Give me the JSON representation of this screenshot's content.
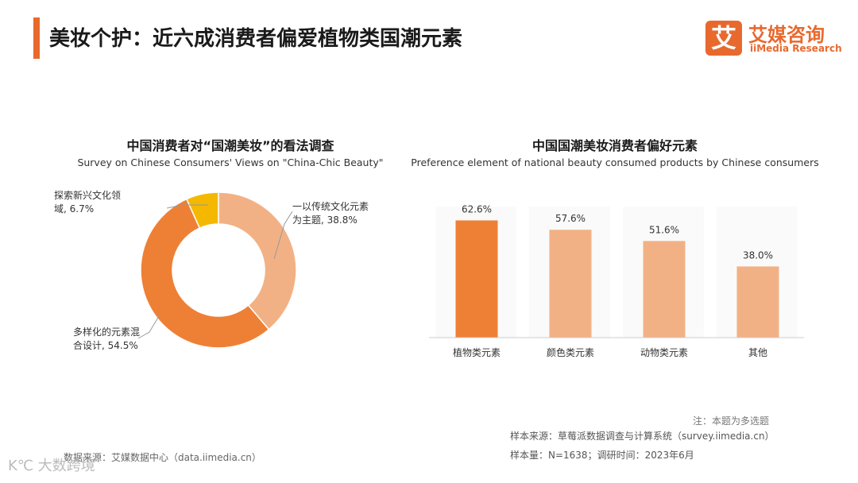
{
  "header": {
    "title": "美妆个护：近六成消费者偏爱植物类国潮元素",
    "accent_color": "#E8692E"
  },
  "logo": {
    "glyph": "艾",
    "name_cn": "艾媒咨询",
    "name_en": "iiMedia Research",
    "color": "#E8692E"
  },
  "chart_data": [
    {
      "type": "pie",
      "title": "中国消费者对“国潮美妆”的看法调查",
      "subtitle": "Survey on Chinese Consumers' Views on \"China-Chic Beauty\"",
      "slices": [
        {
          "label_lines": [
            "一以传统文化元素",
            "为主题, 38.8%"
          ],
          "value": 38.8,
          "color": "#F2B184"
        },
        {
          "label_lines": [
            "多样化的元素混",
            "合设计, 54.5%"
          ],
          "value": 54.5,
          "color": "#EE8035"
        },
        {
          "label_lines": [
            "探索新兴文化领",
            "域, 6.7%"
          ],
          "value": 6.7,
          "color": "#F5B800"
        }
      ]
    },
    {
      "type": "bar",
      "title": "中国国潮美妆消费者偏好元素",
      "subtitle": "Preference element of national beauty consumed products by Chinese consumers",
      "categories": [
        "植物类元素",
        "颜色类元素",
        "动物类元素",
        "其他"
      ],
      "values": [
        62.6,
        57.6,
        51.6,
        38.0
      ],
      "value_labels": [
        "62.6%",
        "57.6%",
        "51.6%",
        "38.0%"
      ],
      "colors": [
        "#EE8035",
        "#F2B184",
        "#F2B184",
        "#F2B184"
      ],
      "ylim": [
        0,
        70
      ]
    }
  ],
  "footer": {
    "note": "注：本题为多选题",
    "sample_source": "样本来源：草莓派数据调查与计算系统（survey.iimedia.cn）",
    "sample_size": "样本量：N=1638；调研时间：2023年6月",
    "data_source": "数据来源：艾媒数据中心（data.iimedia.cn）",
    "watermark": "K℃ 大数跨境"
  }
}
